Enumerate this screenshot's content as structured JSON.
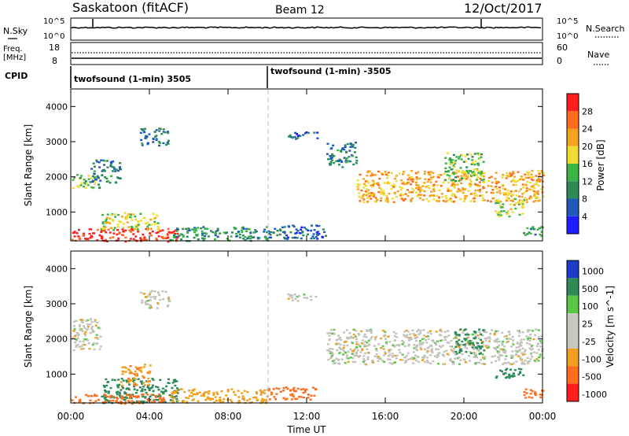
{
  "header": {
    "title_left": "Saskatoon (fitACF)",
    "title_center": "Beam 12",
    "title_right": "12/Oct/2017"
  },
  "params": {
    "nsky_label": "N.Sky",
    "nsearch_label": "N.Search",
    "freq_label": "Freq.",
    "freq_unit": "[MHz]",
    "nave_label": "Nave",
    "cpid_label": "CPID",
    "left_ticks_top": [
      "10^5",
      "10^0"
    ],
    "right_ticks_top": [
      "10^5",
      "10^0"
    ],
    "left_ticks_freq": [
      "18",
      "8"
    ],
    "right_ticks_nave": [
      "60",
      "0"
    ],
    "cpid_segments": [
      {
        "label": "twofsound (1-min) 3505",
        "start_hour": 0
      },
      {
        "label": "twofsound (1-min) -3505",
        "start_hour": 10
      }
    ]
  },
  "chart_data": [
    {
      "type": "heatmap",
      "title": "Power",
      "ylabel": "Slant Range [km]",
      "xlabel": "",
      "xlim": [
        "00:00",
        "24:00"
      ],
      "ylim": [
        180,
        4500
      ],
      "yticks": [
        "1000",
        "2000",
        "3000",
        "4000"
      ],
      "colorbar": {
        "label": "Power [dB]",
        "ticks": [
          "4",
          "8",
          "12",
          "16",
          "20",
          "24",
          "28"
        ],
        "range": [
          0,
          30
        ]
      },
      "echo_regions": [
        {
          "hours": [
            0,
            1.5
          ],
          "range_km": [
            1700,
            2100
          ],
          "value": 14
        },
        {
          "hours": [
            1.0,
            2.5
          ],
          "range_km": [
            1850,
            2500
          ],
          "value": 8
        },
        {
          "hours": [
            0,
            5.5
          ],
          "range_km": [
            180,
            550
          ],
          "value": 28
        },
        {
          "hours": [
            1.5,
            4.5
          ],
          "range_km": [
            500,
            1000
          ],
          "value": 16
        },
        {
          "hours": [
            3.5,
            5.0
          ],
          "range_km": [
            2900,
            3400
          ],
          "value": 8
        },
        {
          "hours": [
            5.0,
            10.0
          ],
          "range_km": [
            200,
            600
          ],
          "value": 10
        },
        {
          "hours": [
            10.0,
            13.0
          ],
          "range_km": [
            250,
            650
          ],
          "value": 6
        },
        {
          "hours": [
            11.0,
            12.5
          ],
          "range_km": [
            3100,
            3300
          ],
          "value": 6
        },
        {
          "hours": [
            13.0,
            14.5
          ],
          "range_km": [
            2300,
            3000
          ],
          "value": 8
        },
        {
          "hours": [
            14.5,
            24.0
          ],
          "range_km": [
            1300,
            2200
          ],
          "value": 20
        },
        {
          "hours": [
            19.0,
            21.0
          ],
          "range_km": [
            1900,
            2700
          ],
          "value": 14
        },
        {
          "hours": [
            21.5,
            23.0
          ],
          "range_km": [
            900,
            1400
          ],
          "value": 16
        },
        {
          "hours": [
            23.0,
            24.0
          ],
          "range_km": [
            350,
            600
          ],
          "value": 10
        }
      ]
    },
    {
      "type": "heatmap",
      "title": "Velocity",
      "ylabel": "Slant Range [km]",
      "xlabel": "Time UT",
      "xlim": [
        "00:00",
        "24:00"
      ],
      "ylim": [
        180,
        4500
      ],
      "xticks": [
        "00:00",
        "04:00",
        "08:00",
        "12:00",
        "16:00",
        "20:00",
        "00:00"
      ],
      "yticks": [
        "1000",
        "2000",
        "3000",
        "4000"
      ],
      "colorbar": {
        "label": "Velocity [m s^-1]",
        "ticks": [
          "1000",
          "500",
          "100",
          "25",
          "-25",
          "-100",
          "-500",
          "-1000"
        ]
      },
      "echo_regions": [
        {
          "hours": [
            0,
            1.5
          ],
          "range_km": [
            1700,
            2600
          ],
          "value": 0
        },
        {
          "hours": [
            1.5,
            5.5
          ],
          "range_km": [
            200,
            900
          ],
          "value": 150
        },
        {
          "hours": [
            0,
            5.0
          ],
          "range_km": [
            180,
            450
          ],
          "value": -150
        },
        {
          "hours": [
            2.5,
            4.0
          ],
          "range_km": [
            700,
            1300
          ],
          "value": -80
        },
        {
          "hours": [
            3.5,
            5.0
          ],
          "range_km": [
            2900,
            3400
          ],
          "value": 0
        },
        {
          "hours": [
            5.0,
            10.0
          ],
          "range_km": [
            200,
            600
          ],
          "value": -60
        },
        {
          "hours": [
            10.0,
            12.5
          ],
          "range_km": [
            300,
            650
          ],
          "value": -150
        },
        {
          "hours": [
            11.0,
            12.5
          ],
          "range_km": [
            3100,
            3300
          ],
          "value": 0
        },
        {
          "hours": [
            13.0,
            24.0
          ],
          "range_km": [
            1300,
            2300
          ],
          "value": 0
        },
        {
          "hours": [
            19.5,
            21.0
          ],
          "range_km": [
            1600,
            2300
          ],
          "value": 400
        },
        {
          "hours": [
            21.5,
            23.0
          ],
          "range_km": [
            900,
            1200
          ],
          "value": 300
        },
        {
          "hours": [
            23.0,
            24.0
          ],
          "range_km": [
            350,
            600
          ],
          "value": -300
        }
      ]
    }
  ],
  "colors": {
    "power_scale": [
      "#1e1eff",
      "#1f5ab8",
      "#2e8b57",
      "#3cb446",
      "#f0dc32",
      "#f5a31e",
      "#ff6e1e",
      "#ff1e1e"
    ],
    "velocity_scale": [
      "#1e3cc8",
      "#2e8b57",
      "#5ac846",
      "#c8c8c0",
      "#c8c8c0",
      "#f0a01e",
      "#ff6e1e",
      "#ff1e1e"
    ],
    "ground_scatter": "#c3c3bc"
  }
}
